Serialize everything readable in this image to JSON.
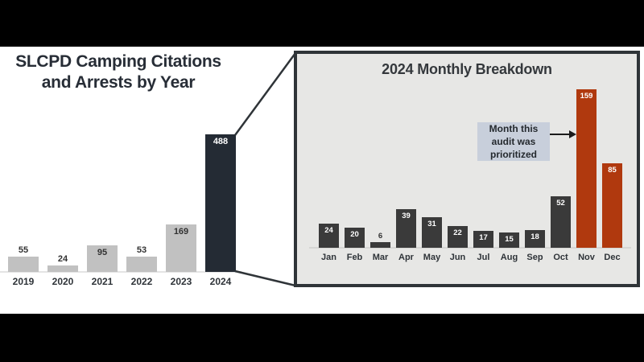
{
  "page": {
    "title_line1": "SLCPD Camping Citations",
    "title_line2": "and Arrests by Year"
  },
  "breakdown": {
    "title": "2024 Monthly Breakdown",
    "annotation_lines": [
      "Month this",
      "audit was",
      "prioritized"
    ]
  },
  "colors": {
    "background_letterbox": "#000000",
    "content_background": "#ffffff",
    "text_dark": "#272d36",
    "year_bar": "#c1c1c1",
    "year_bar_highlight": "#242b34",
    "month_bar": "#3a3a3a",
    "month_bar_highlight": "#b0390e",
    "panel_background": "#e7e7e5",
    "panel_border": "#2f3438",
    "annotation_background": "#c8cfdb"
  },
  "chart_data": [
    {
      "type": "bar",
      "title": "SLCPD Camping Citations and Arrests by Year",
      "categories": [
        "2019",
        "2020",
        "2021",
        "2022",
        "2023",
        "2024"
      ],
      "values": [
        55,
        24,
        95,
        53,
        169,
        488
      ],
      "highlight_indexes": [
        5
      ],
      "bar_color": "#c1c1c1",
      "highlight_color": "#242b34",
      "xlabel": "",
      "ylabel": "",
      "grid": false,
      "legend": false
    },
    {
      "type": "bar",
      "title": "2024 Monthly Breakdown",
      "categories": [
        "Jan",
        "Feb",
        "Mar",
        "Apr",
        "May",
        "Jun",
        "Jul",
        "Aug",
        "Sep",
        "Oct",
        "Nov",
        "Dec"
      ],
      "values": [
        24,
        20,
        6,
        39,
        31,
        22,
        17,
        15,
        18,
        52,
        159,
        85
      ],
      "highlight_indexes": [
        10,
        11
      ],
      "bar_color": "#3a3a3a",
      "highlight_color": "#b0390e",
      "annotation": "Month this audit was prioritized",
      "annotation_target": "Nov",
      "xlabel": "",
      "ylabel": "",
      "grid": false,
      "legend": false
    }
  ]
}
